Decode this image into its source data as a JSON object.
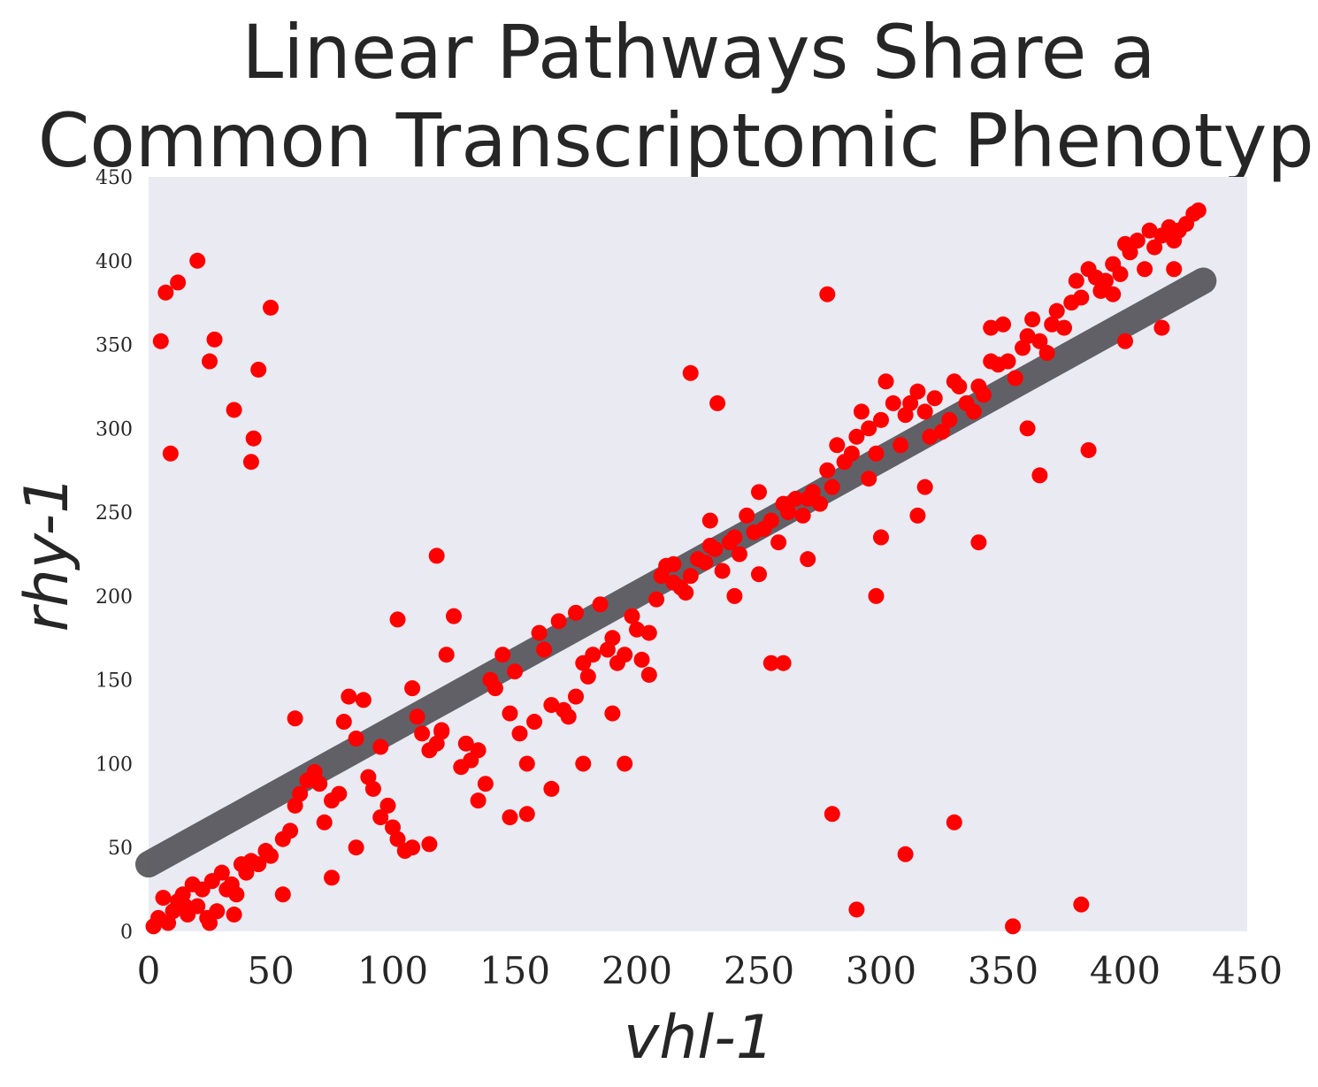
{
  "chart_data": {
    "type": "scatter",
    "title_lines": [
      "Linear Pathways Share a",
      "Common Transcriptomic Phenotype"
    ],
    "xlabel": "vhl-1",
    "ylabel": "rhy-1",
    "xlim": [
      0,
      450
    ],
    "ylim": [
      0,
      450
    ],
    "xticks": [
      "0",
      "50",
      "100",
      "150",
      "200",
      "250",
      "300",
      "350",
      "400",
      "450"
    ],
    "yticks": [
      "0",
      "50",
      "100",
      "150",
      "200",
      "250",
      "300",
      "350",
      "400",
      "450"
    ],
    "grid": false,
    "background": "#EAEAF2",
    "point_color": "#FF0000",
    "fit_line": {
      "color": "#5A595E",
      "opacity": 0.95,
      "x": [
        0,
        432
      ],
      "y": [
        40,
        388
      ]
    },
    "series": [
      {
        "x": [
          2,
          4,
          6,
          8,
          10,
          12,
          14,
          16,
          18,
          20,
          22,
          24,
          26,
          28,
          30,
          32,
          34,
          36,
          38,
          40,
          42,
          45,
          48,
          50,
          55,
          58,
          60,
          62,
          65,
          68,
          70,
          72,
          75,
          78,
          80,
          82,
          85,
          88,
          90,
          92,
          95,
          98,
          100,
          102,
          105,
          108,
          110,
          112,
          115,
          118,
          120,
          122,
          125,
          128,
          130,
          132,
          135,
          138,
          140,
          142,
          145,
          148,
          150,
          152,
          155,
          158,
          160,
          162,
          165,
          168,
          170,
          172,
          175,
          178,
          180,
          182,
          185,
          188,
          190,
          192,
          195,
          198,
          200,
          202,
          205,
          208,
          210,
          212,
          215,
          218,
          220,
          222,
          225,
          228,
          230,
          232,
          235,
          238,
          240,
          242,
          245,
          248,
          250,
          252,
          255,
          258,
          260,
          262,
          265,
          268,
          270,
          272,
          275,
          278,
          280,
          282,
          285,
          288,
          290,
          292,
          295,
          298,
          300,
          302,
          305,
          308,
          310,
          312,
          315,
          318,
          320,
          322,
          325,
          328,
          330,
          332,
          335,
          338,
          340,
          342,
          345,
          348,
          350,
          352,
          355,
          358,
          360,
          362,
          365,
          368,
          370,
          372,
          375,
          378,
          380,
          382,
          385,
          388,
          390,
          392,
          395,
          398,
          400,
          402,
          405,
          408,
          410,
          412,
          415,
          418,
          420,
          422,
          425,
          428,
          430,
          5,
          7,
          9,
          12,
          20,
          25,
          27,
          35,
          42,
          43,
          45,
          50,
          102,
          118,
          222,
          233,
          255,
          278,
          290,
          298,
          310,
          330,
          354,
          382,
          120,
          108,
          85,
          60,
          148,
          165,
          178,
          190,
          205,
          215,
          240,
          260,
          280,
          300,
          318,
          340,
          360,
          385,
          400,
          420,
          15,
          25,
          35,
          55,
          75,
          95,
          115,
          135,
          155,
          175,
          195,
          230,
          250,
          270,
          295,
          315,
          345,
          365,
          395,
          415
        ],
        "y": [
          3,
          8,
          20,
          5,
          12,
          18,
          22,
          10,
          28,
          15,
          25,
          8,
          30,
          12,
          35,
          25,
          28,
          22,
          40,
          35,
          42,
          40,
          48,
          45,
          55,
          60,
          75,
          82,
          90,
          95,
          88,
          65,
          78,
          82,
          125,
          140,
          115,
          138,
          92,
          85,
          110,
          75,
          62,
          55,
          48,
          50,
          128,
          118,
          108,
          112,
          120,
          165,
          188,
          98,
          112,
          102,
          108,
          88,
          150,
          145,
          165,
          130,
          155,
          118,
          100,
          125,
          178,
          168,
          135,
          185,
          132,
          128,
          190,
          160,
          152,
          165,
          195,
          168,
          175,
          160,
          165,
          188,
          180,
          162,
          178,
          198,
          212,
          218,
          208,
          205,
          202,
          212,
          222,
          220,
          230,
          228,
          215,
          232,
          235,
          225,
          248,
          238,
          262,
          240,
          245,
          232,
          255,
          250,
          258,
          248,
          258,
          262,
          255,
          275,
          265,
          290,
          280,
          285,
          295,
          310,
          300,
          285,
          305,
          328,
          315,
          290,
          308,
          315,
          322,
          310,
          295,
          318,
          298,
          305,
          328,
          325,
          315,
          310,
          325,
          320,
          340,
          338,
          362,
          340,
          330,
          348,
          355,
          365,
          352,
          345,
          362,
          370,
          360,
          375,
          388,
          378,
          395,
          390,
          382,
          388,
          398,
          392,
          410,
          405,
          412,
          395,
          418,
          408,
          415,
          420,
          412,
          418,
          422,
          428,
          430,
          352,
          381,
          285,
          387,
          400,
          340,
          353,
          311,
          280,
          294,
          335,
          372,
          186,
          224,
          333,
          315,
          160,
          380,
          13,
          200,
          46,
          65,
          3,
          16,
          119,
          145,
          50,
          127,
          68,
          85,
          100,
          130,
          153,
          219,
          200,
          160,
          70,
          235,
          265,
          232,
          300,
          287,
          352,
          395,
          15,
          5,
          10,
          22,
          32,
          68,
          52,
          78,
          70,
          140,
          100,
          245,
          213,
          222,
          270,
          248,
          360,
          272,
          380,
          360
        ]
      }
    ]
  }
}
